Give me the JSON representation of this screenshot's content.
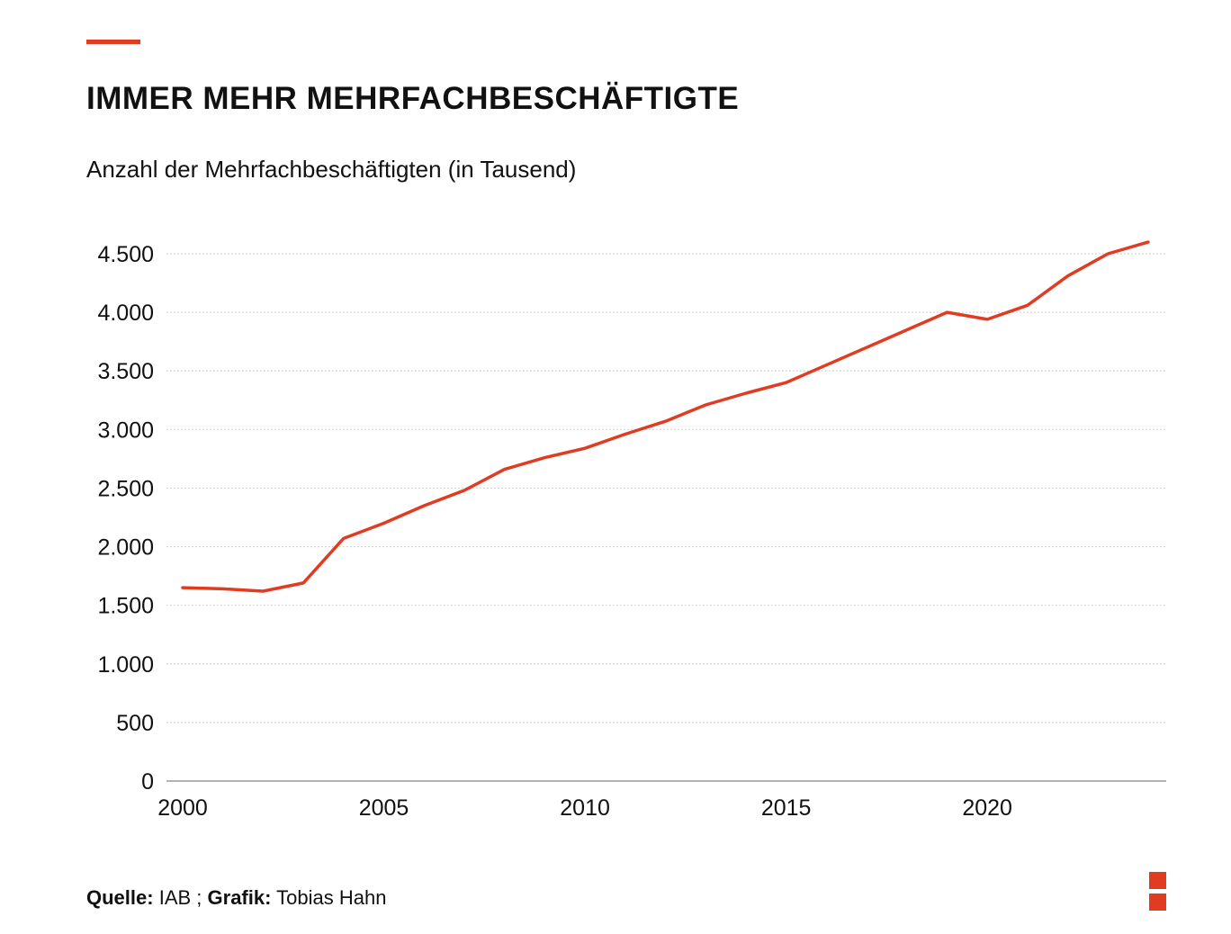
{
  "colors": {
    "accent": "#e03c22",
    "grid": "#c8c8c8",
    "axis": "#999999",
    "text": "#111111"
  },
  "header": {
    "title": "IMMER MEHR MEHRFACHBESCHÄFTIGTE",
    "subtitle": "Anzahl der Mehrfachbeschäftigten (in Tausend)"
  },
  "footer": {
    "source_label": "Quelle:",
    "source_value": "IAB ;",
    "graphic_label": "Grafik:",
    "graphic_value": "Tobias Hahn"
  },
  "chart_data": {
    "type": "line",
    "title": "IMMER MEHR MEHRFACHBESCHÄFTIGTE",
    "subtitle": "Anzahl der Mehrfachbeschäftigten (in Tausend)",
    "xlabel": "",
    "ylabel": "",
    "xlim": [
      2000,
      2024
    ],
    "ylim": [
      0,
      4500
    ],
    "x_ticks": [
      2000,
      2005,
      2010,
      2015,
      2020
    ],
    "x_tick_labels": [
      "2000",
      "2005",
      "2010",
      "2015",
      "2020"
    ],
    "y_ticks": [
      0,
      500,
      1000,
      1500,
      2000,
      2500,
      3000,
      3500,
      4000,
      4500
    ],
    "y_tick_labels": [
      "0",
      "500",
      "1.000",
      "1.500",
      "2.000",
      "2.500",
      "3.000",
      "3.500",
      "4.000",
      "4.500"
    ],
    "grid": true,
    "legend": "none",
    "series": [
      {
        "color": "#e03c22",
        "x": [
          2000,
          2001,
          2002,
          2003,
          2004,
          2005,
          2006,
          2007,
          2008,
          2009,
          2010,
          2011,
          2012,
          2013,
          2014,
          2015,
          2016,
          2017,
          2018,
          2019,
          2020,
          2021,
          2022,
          2023,
          2024
        ],
        "values": [
          1650,
          1640,
          1620,
          1690,
          2070,
          2200,
          2350,
          2480,
          2660,
          2760,
          2840,
          2960,
          3070,
          3210,
          3310,
          3400,
          3550,
          3700,
          3850,
          4000,
          3940,
          4060,
          4310,
          4500,
          4600
        ]
      }
    ]
  }
}
